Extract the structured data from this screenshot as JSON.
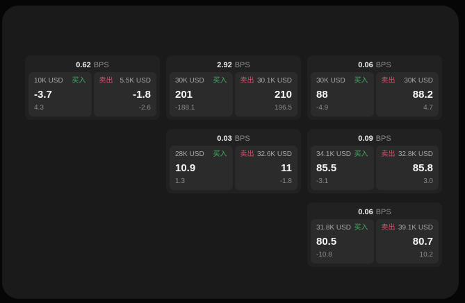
{
  "colors": {
    "buy_accent": "#3fae62",
    "sell_accent": "#cc5268",
    "page_background": "#1a1a1a",
    "card_background": "#212121",
    "panel_background": "#2b2b2b"
  },
  "bps_unit_label": "BPS",
  "buy_label": "买入",
  "sell_label": "卖出",
  "cards": [
    {
      "row": 1,
      "col": 1,
      "bps_value": "0.62",
      "bps_unit": "BPS",
      "buy": {
        "amount": "10K USD",
        "side_label": "买入",
        "price": "-3.7",
        "change": "4.3"
      },
      "sell": {
        "side_label": "卖出",
        "amount": "5.5K USD",
        "price": "-1.8",
        "change": "-2.6"
      }
    },
    {
      "row": 1,
      "col": 2,
      "bps_value": "2.92",
      "bps_unit": "BPS",
      "buy": {
        "amount": "30K USD",
        "side_label": "买入",
        "price": "201",
        "change": "-188.1"
      },
      "sell": {
        "side_label": "卖出",
        "amount": "30.1K USD",
        "price": "210",
        "change": "196.5"
      }
    },
    {
      "row": 1,
      "col": 3,
      "bps_value": "0.06",
      "bps_unit": "BPS",
      "buy": {
        "amount": "30K USD",
        "side_label": "买入",
        "price": "88",
        "change": "-4.9"
      },
      "sell": {
        "side_label": "卖出",
        "amount": "30K USD",
        "price": "88.2",
        "change": "4.7"
      }
    },
    {
      "row": 2,
      "col": 2,
      "bps_value": "0.03",
      "bps_unit": "BPS",
      "buy": {
        "amount": "28K USD",
        "side_label": "买入",
        "price": "10.9",
        "change": "1.3"
      },
      "sell": {
        "side_label": "卖出",
        "amount": "32.6K USD",
        "price": "11",
        "change": "-1.8"
      }
    },
    {
      "row": 2,
      "col": 3,
      "bps_value": "0.09",
      "bps_unit": "BPS",
      "buy": {
        "amount": "34.1K USD",
        "side_label": "买入",
        "price": "85.5",
        "change": "-3.1"
      },
      "sell": {
        "side_label": "卖出",
        "amount": "32.8K USD",
        "price": "85.8",
        "change": "3.0"
      }
    },
    {
      "row": 3,
      "col": 3,
      "bps_value": "0.06",
      "bps_unit": "BPS",
      "buy": {
        "amount": "31.8K USD",
        "side_label": "买入",
        "price": "80.5",
        "change": "-10.8"
      },
      "sell": {
        "side_label": "卖出",
        "amount": "39.1K USD",
        "price": "80.7",
        "change": "10.2"
      }
    }
  ]
}
